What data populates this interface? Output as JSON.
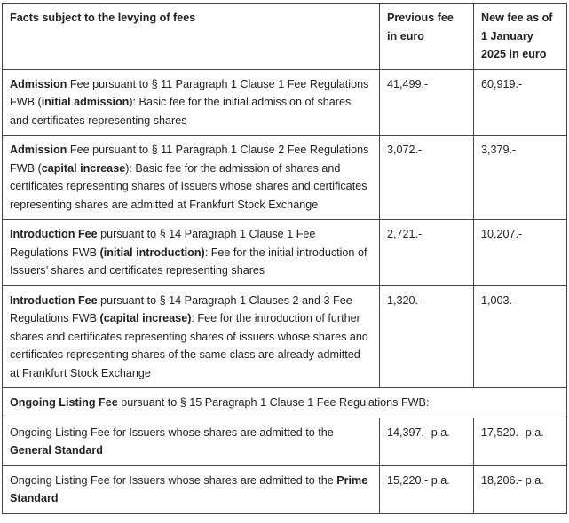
{
  "header": {
    "col1": "Facts subject to the levying of fees",
    "col2": "Previous fee in euro",
    "col3": "New fee as of 1 January 2025 in euro"
  },
  "rows": [
    {
      "parts": [
        "Admission",
        " Fee pursuant to § 11 Paragraph 1 Clause 1 Fee Regulations FWB (",
        "initial admission",
        "): Basic fee for the initial admission of shares and certificates representing shares"
      ],
      "previous": "41,499.-",
      "new": "60,919.-"
    },
    {
      "parts": [
        "Admission",
        " Fee pursuant to § 11 Paragraph 1 Clause 2 Fee Regulations FWB (",
        "capital increase",
        "): Basic fee for the admission of shares and certificates representing shares of Issuers whose shares and certificates representing shares are admitted at Frankfurt Stock Exchange"
      ],
      "previous": "3,072.-",
      "new": "3,379.-"
    },
    {
      "parts": [
        "Introduction Fee",
        " pursuant to § 14 Paragraph 1 Clause 1 Fee Regulations FWB ",
        "(initial introduction)",
        ": Fee for the initial introduction of Issuers’ shares and certificates representing shares"
      ],
      "previous": "2,721.-",
      "new": "10,207.-"
    },
    {
      "parts": [
        "Introduction Fee",
        " pursuant to § 14 Paragraph 1 Clauses 2 and 3 Fee Regulations FWB ",
        "(capital increase)",
        ": Fee for the introduction of further shares and certificates representing shares of issuers whose shares and certificates representing shares of the same class are already admitted at Frankfurt Stock Exchange"
      ],
      "previous": "1,320.-",
      "new": "1,003.-"
    }
  ],
  "ongoing": {
    "heading_bold": "Ongoing Listing Fee",
    "heading_rest": " pursuant to § 15 Paragraph 1 Clause 1 Fee Regulations FWB:",
    "rows": [
      {
        "text": "Ongoing Listing Fee for Issuers whose shares are admitted to the ",
        "bold": "General Standard",
        "previous": "14,397.- p.a.",
        "new": "17,520.- p.a."
      },
      {
        "text": "Ongoing Listing Fee for Issuers whose shares are admitted to the ",
        "bold": "Prime Standard",
        "previous": "15,220.- p.a.",
        "new": "18,206.- p.a."
      }
    ]
  }
}
